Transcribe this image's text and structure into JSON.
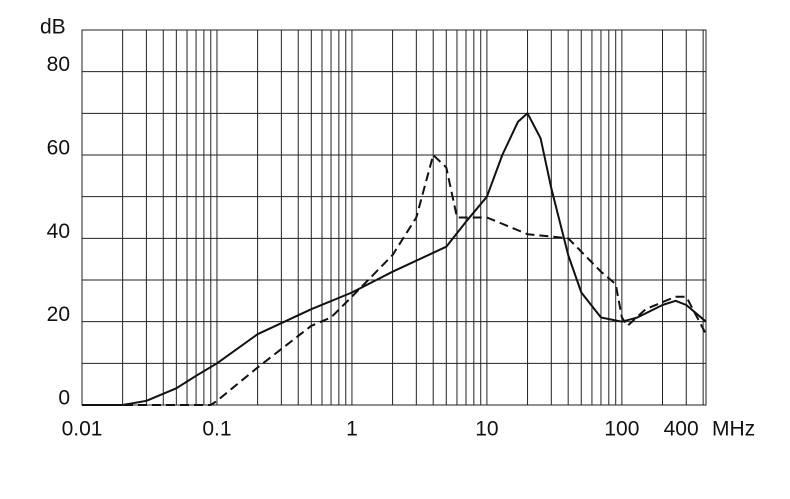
{
  "chart_data": {
    "type": "line",
    "x_label": "MHz",
    "y_label": "dB",
    "xscale": "log",
    "xlim": [
      0.01,
      420
    ],
    "ylim": [
      0,
      90
    ],
    "xticks": [
      0.01,
      0.1,
      1,
      10,
      100,
      400
    ],
    "minor_xticks": [
      0.02,
      0.03,
      0.04,
      0.05,
      0.06,
      0.07,
      0.08,
      0.09,
      0.2,
      0.3,
      0.4,
      0.5,
      0.6,
      0.7,
      0.8,
      0.9,
      2,
      3,
      4,
      5,
      6,
      7,
      8,
      9,
      20,
      30,
      40,
      50,
      60,
      70,
      80,
      90,
      200,
      300
    ],
    "yticks": [
      0,
      20,
      40,
      60,
      80
    ],
    "minor_yticks": [
      10,
      30,
      50,
      70,
      90
    ],
    "grid": true,
    "series": [
      {
        "color": "#111111",
        "dash": false,
        "x": [
          0.01,
          0.02,
          0.03,
          0.05,
          0.07,
          0.1,
          0.2,
          0.5,
          1,
          2,
          5,
          7,
          10,
          13,
          17,
          20,
          25,
          30,
          40,
          50,
          70,
          100,
          130,
          200,
          250,
          300,
          420
        ],
        "values": [
          0,
          0,
          1,
          4,
          7,
          10,
          17,
          23,
          27,
          32,
          38,
          44,
          50,
          60,
          68,
          70,
          64,
          52,
          36,
          27,
          21,
          20,
          21,
          24,
          25,
          24,
          20
        ]
      },
      {
        "color": "#111111",
        "dash": true,
        "x": [
          0.01,
          0.05,
          0.09,
          0.1,
          0.2,
          0.5,
          0.7,
          1,
          2,
          3,
          4,
          5,
          6,
          10,
          20,
          40,
          70,
          90,
          100,
          110,
          150,
          250,
          300,
          420
        ],
        "values": [
          0,
          0,
          0,
          1,
          9,
          19,
          21,
          26,
          36,
          45,
          60,
          57,
          45,
          45,
          41,
          40,
          32,
          29,
          21,
          19,
          23,
          26,
          26,
          17
        ]
      }
    ]
  }
}
